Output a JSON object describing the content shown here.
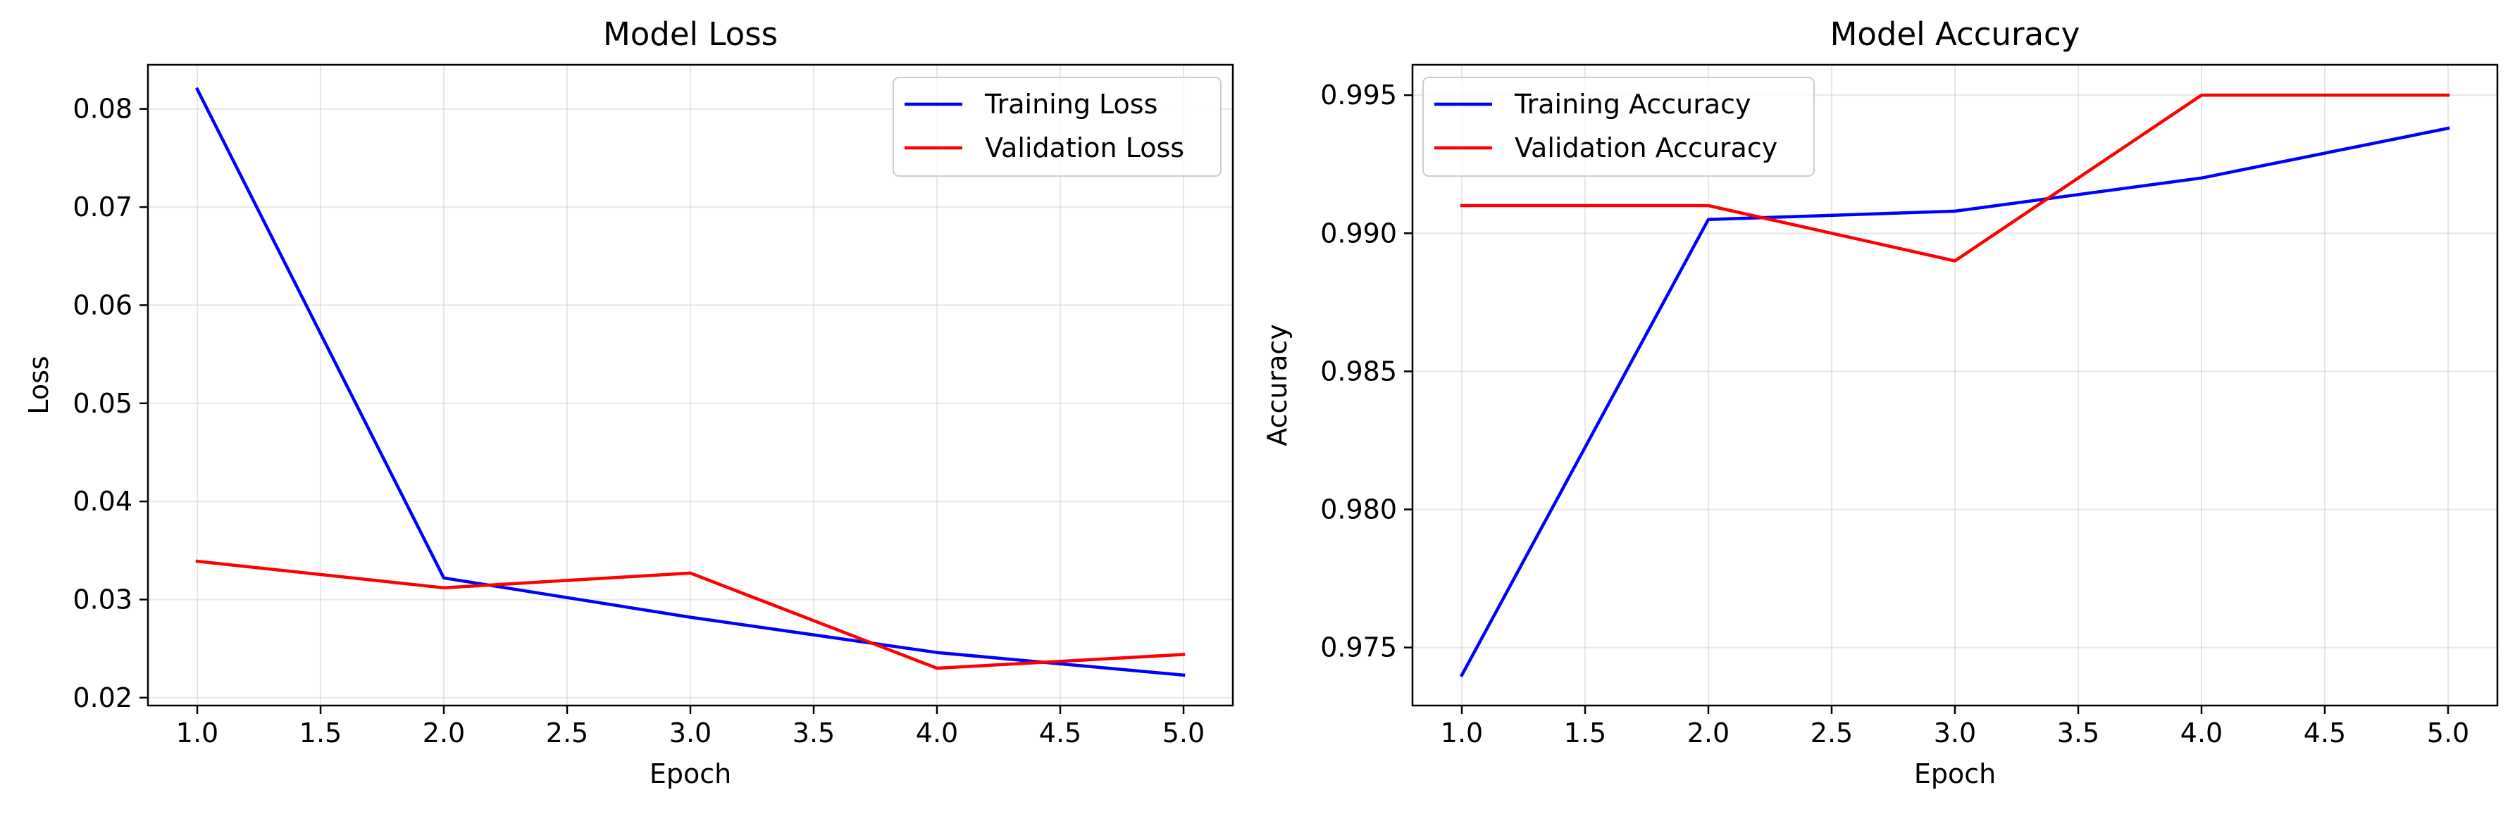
{
  "chart_data": [
    {
      "type": "line",
      "title": "Model Loss",
      "xlabel": "Epoch",
      "ylabel": "Loss",
      "x": [
        1,
        2,
        3,
        4,
        5
      ],
      "xlim": [
        0.8,
        5.2
      ],
      "ylim": [
        0.0192,
        0.0845
      ],
      "xticks": [
        1.0,
        1.5,
        2.0,
        2.5,
        3.0,
        3.5,
        4.0,
        4.5,
        5.0
      ],
      "xtick_labels": [
        "1.0",
        "1.5",
        "2.0",
        "2.5",
        "3.0",
        "3.5",
        "4.0",
        "4.5",
        "5.0"
      ],
      "yticks": [
        0.02,
        0.03,
        0.04,
        0.05,
        0.06,
        0.07,
        0.08
      ],
      "ytick_labels": [
        "0.02",
        "0.03",
        "0.04",
        "0.05",
        "0.06",
        "0.07",
        "0.08"
      ],
      "grid": true,
      "legend_position": "top-right",
      "series": [
        {
          "name": "Training Loss",
          "color": "#0000ff",
          "values": [
            0.082,
            0.0322,
            0.0282,
            0.0246,
            0.0223
          ]
        },
        {
          "name": "Validation Loss",
          "color": "#ff0000",
          "values": [
            0.0339,
            0.0312,
            0.0327,
            0.023,
            0.0244
          ]
        }
      ]
    },
    {
      "type": "line",
      "title": "Model Accuracy",
      "xlabel": "Epoch",
      "ylabel": "Accuracy",
      "x": [
        1,
        2,
        3,
        4,
        5
      ],
      "xlim": [
        0.8,
        5.2
      ],
      "ylim": [
        0.9729,
        0.9961
      ],
      "xticks": [
        1.0,
        1.5,
        2.0,
        2.5,
        3.0,
        3.5,
        4.0,
        4.5,
        5.0
      ],
      "xtick_labels": [
        "1.0",
        "1.5",
        "2.0",
        "2.5",
        "3.0",
        "3.5",
        "4.0",
        "4.5",
        "5.0"
      ],
      "yticks": [
        0.975,
        0.98,
        0.985,
        0.99,
        0.995
      ],
      "ytick_labels": [
        "0.975",
        "0.980",
        "0.985",
        "0.990",
        "0.995"
      ],
      "grid": true,
      "legend_position": "top-left",
      "series": [
        {
          "name": "Training Accuracy",
          "color": "#0000ff",
          "values": [
            0.974,
            0.9905,
            0.9908,
            0.992,
            0.9938
          ]
        },
        {
          "name": "Validation Accuracy",
          "color": "#ff0000",
          "values": [
            0.991,
            0.991,
            0.989,
            0.995,
            0.995
          ]
        }
      ]
    }
  ]
}
